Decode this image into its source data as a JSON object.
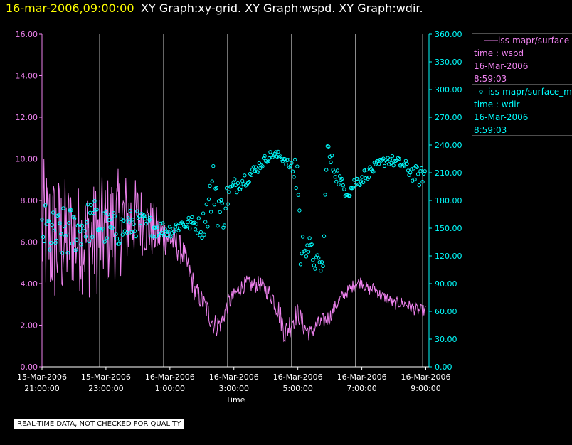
{
  "header": {
    "date": "16-mar-2006,09:00:00",
    "title": "XY Graph:xy-grid.  XY Graph:wspd.  XY Graph:wdir."
  },
  "note": "REAL-TIME DATA, NOT CHECKED FOR QUALITY",
  "colors": {
    "wspd": "#ee82ee",
    "wdir": "#00ffff",
    "grid": "#9a9a9a",
    "text": "#ffffff",
    "date": "#ffff00"
  },
  "chart_data": {
    "type": "line",
    "title": "XY Graph:xy-grid.  XY Graph:wspd.  XY Graph:wdir.",
    "xlabel": "Time",
    "xlim": [
      -12,
      0.1
    ],
    "x_ticks": [
      {
        "h": -12,
        "l1": "15-Mar-2006",
        "l2": "21:00:00"
      },
      {
        "h": -10,
        "l1": "15-Mar-2006",
        "l2": "23:00:00"
      },
      {
        "h": -8,
        "l1": "16-Mar-2006",
        "l2": "1:00:00"
      },
      {
        "h": -6,
        "l1": "16-Mar-2006",
        "l2": "3:00:00"
      },
      {
        "h": -4,
        "l1": "16-Mar-2006",
        "l2": "5:00:00"
      },
      {
        "h": -2,
        "l1": "16-Mar-2006",
        "l2": "7:00:00"
      },
      {
        "h": 0,
        "l1": "16-Mar-2006",
        "l2": "9:00:00"
      }
    ],
    "y_left": {
      "label": "wspd",
      "lim": [
        0,
        16
      ],
      "ticks": [
        "0.00",
        "2.00",
        "4.00",
        "6.00",
        "8.00",
        "10.00",
        "12.00",
        "14.00",
        "16.00"
      ]
    },
    "y_right": {
      "label": "wdir",
      "lim": [
        0,
        360
      ],
      "ticks": [
        "0.00",
        "30.00",
        "60.00",
        "90.00",
        "120.00",
        "150.00",
        "180.00",
        "210.00",
        "240.00",
        "270.00",
        "300.00",
        "330.00",
        "360.00"
      ]
    },
    "grid_x": [
      -10.2,
      -8.2,
      -6.2,
      -4.2,
      -2.2,
      -0.1
    ],
    "legend": [
      {
        "line1": "iss-mapr/surface_met",
        "line2": "time : wspd",
        "line3": "16-Mar-2006",
        "line4": "8:59:03"
      },
      {
        "line1": "iss-mapr/surface_met",
        "line2": "time : wdir",
        "line3": "16-Mar-2006",
        "line4": "8:59:03"
      }
    ],
    "series": [
      {
        "name": "wspd",
        "axis": "left",
        "style": "line",
        "hours": [
          -12,
          -11.5,
          -11,
          -10.5,
          -10,
          -9.5,
          -9,
          -8.5,
          -8,
          -7.6,
          -7.4,
          -7.2,
          -7,
          -6.8,
          -6.6,
          -6.4,
          -6.2,
          -6,
          -5.8,
          -5.6,
          -5.4,
          -5.2,
          -5,
          -4.8,
          -4.6,
          -4.4,
          -4.2,
          -4,
          -3.8,
          -3.6,
          -3.4,
          -3.2,
          -3,
          -2.8,
          -2.6,
          -2.4,
          -2.2,
          -2,
          -1.8,
          -1.6,
          -1.4,
          -1.2,
          -1,
          -0.8,
          -0.6,
          -0.4,
          -0.2,
          0
        ],
        "values": [
          6.5,
          6.0,
          6.3,
          6.0,
          6.5,
          7.0,
          7.2,
          6.5,
          6.2,
          5.5,
          4.6,
          3.6,
          3.2,
          2.6,
          2.0,
          2.1,
          3.0,
          3.4,
          3.8,
          4.0,
          3.9,
          4.0,
          3.7,
          3.4,
          2.7,
          1.6,
          2.2,
          2.6,
          1.9,
          1.6,
          2.0,
          2.2,
          2.4,
          3.0,
          3.4,
          3.7,
          4.0,
          4.1,
          3.7,
          3.8,
          3.4,
          3.3,
          3.0,
          3.1,
          3.0,
          2.8,
          2.7,
          2.7
        ],
        "spread": [
          3.6,
          3.4,
          2.6,
          2.8,
          2.8,
          2.6,
          1.8,
          1.4,
          0.8,
          0.7,
          0.7,
          0.6,
          0.5,
          0.6,
          0.6,
          0.5,
          0.5,
          0.4,
          0.4,
          0.4,
          0.4,
          0.4,
          0.4,
          0.5,
          0.6,
          0.6,
          0.7,
          0.5,
          0.5,
          0.4,
          0.4,
          0.4,
          0.4,
          0.3,
          0.3,
          0.3,
          0.3,
          0.3,
          0.3,
          0.3,
          0.3,
          0.3,
          0.3,
          0.3,
          0.3,
          0.3,
          0.3,
          0.3
        ]
      },
      {
        "name": "wdir",
        "axis": "right",
        "style": "markers",
        "hours": [
          -12,
          -11.6,
          -11.2,
          -10.8,
          -10.4,
          -10,
          -9.6,
          -9.2,
          -8.8,
          -8.4,
          -8,
          -7.6,
          -7.2,
          -7,
          -6.8,
          -6.6,
          -6.4,
          -6.2,
          -6,
          -5.8,
          -5.6,
          -5.4,
          -5.2,
          -5,
          -4.8,
          -4.6,
          -4.4,
          -4.2,
          -4,
          -3.9,
          -3.8,
          -3.6,
          -3.4,
          -3.2,
          -3.1,
          -3,
          -2.8,
          -2.6,
          -2.4,
          -2.2,
          -2,
          -1.8,
          -1.6,
          -1.4,
          -1.2,
          -1,
          -0.8,
          -0.6,
          -0.4,
          -0.2,
          0
        ],
        "values": [
          150,
          140,
          145,
          150,
          160,
          150,
          148,
          155,
          155,
          150,
          148,
          155,
          155,
          150,
          175,
          200,
          160,
          185,
          195,
          200,
          205,
          210,
          218,
          225,
          230,
          228,
          225,
          215,
          210,
          110,
          140,
          125,
          110,
          110,
          240,
          225,
          210,
          195,
          190,
          200,
          205,
          210,
          215,
          220,
          225,
          222,
          220,
          215,
          210,
          205,
          210
        ],
        "spread": [
          30,
          28,
          30,
          22,
          24,
          20,
          18,
          16,
          12,
          10,
          8,
          8,
          8,
          12,
          25,
          30,
          30,
          15,
          10,
          8,
          8,
          8,
          6,
          5,
          5,
          5,
          5,
          5,
          40,
          20,
          20,
          12,
          12,
          10,
          15,
          10,
          10,
          8,
          8,
          8,
          8,
          6,
          6,
          6,
          6,
          6,
          6,
          8,
          10,
          10,
          8
        ]
      }
    ]
  }
}
